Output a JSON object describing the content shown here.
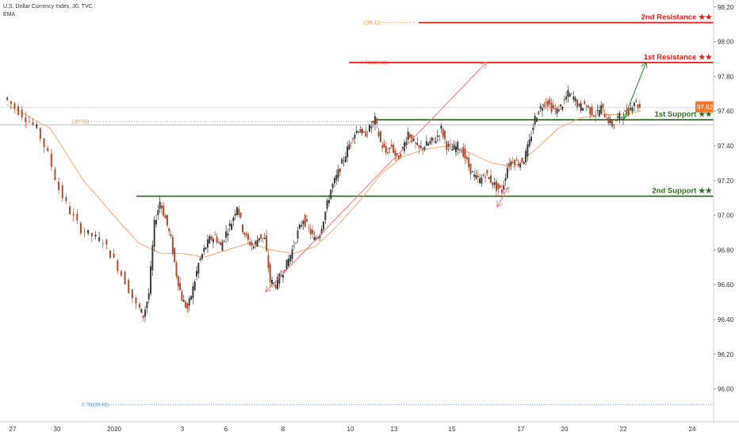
{
  "header": {
    "title": "U.S. Dollar Currency Index, 30, TVC",
    "indicator": "EMA"
  },
  "colors": {
    "resistance": "#e31b1b",
    "support": "#2f6e1e",
    "up_candle": "#3c3c3c",
    "down_candle": "#b24a2f",
    "ema": "#f5a673",
    "arrow_pink": "#f08080",
    "arrow_green": "#2f8a2f",
    "fib_red": "#e46b6b",
    "fib_orange": "#d08c3c",
    "fib_blue": "#5a8bc8",
    "badge_orange": "#f0782a"
  },
  "chart_data": {
    "type": "candlestick",
    "ylim": [
      95.82,
      98.24
    ],
    "y_ticks": [
      98.2,
      98.0,
      97.8,
      97.6,
      97.4,
      97.2,
      97.0,
      96.8,
      96.6,
      96.4,
      96.2,
      96.0
    ],
    "y_tick_labels": [
      "98.20",
      "98.00",
      "97.80",
      "97.60",
      "97.40",
      "97.20",
      "97.00",
      "96.80",
      "96.60",
      "96.40",
      "96.20",
      "96.00"
    ],
    "x_tick_labels": [
      "27",
      "30",
      "2020",
      "3",
      "6",
      "8",
      "10",
      "13",
      "15",
      "17",
      "20",
      "22",
      "24"
    ],
    "levels": [
      {
        "name": "2nd Resistance ★★",
        "value": 98.11,
        "price_label": "98.11",
        "role": "resistance"
      },
      {
        "name": "1st Resistance ★★",
        "value": 97.88,
        "price_label": "97.88",
        "role": "resistance"
      },
      {
        "name": "1st Support ★★",
        "value": 97.55,
        "price_label": "97.55",
        "role": "support"
      },
      {
        "name": "2nd Support ★★",
        "value": 97.11,
        "price_label": "97.11",
        "role": "support"
      }
    ],
    "fib_labels": [
      {
        "text": "1(98.11)",
        "value": 98.11,
        "color": "orange"
      },
      {
        "text": "0.786(97.88)",
        "value": 97.88,
        "color": "red"
      },
      {
        "text": "1(97.54)",
        "value": 97.54,
        "color": "orange"
      },
      {
        "text": "0.786(95.91)",
        "value": 95.91,
        "color": "blue"
      }
    ],
    "current_price_badge": "97.62",
    "price_path": [
      [
        0,
        97.68
      ],
      [
        2,
        97.62
      ],
      [
        4,
        97.56
      ],
      [
        6,
        97.5
      ],
      [
        8,
        97.35
      ],
      [
        10,
        97.15
      ],
      [
        12,
        97.02
      ],
      [
        14,
        96.92
      ],
      [
        16,
        96.88
      ],
      [
        18,
        96.85
      ],
      [
        20,
        96.74
      ],
      [
        22,
        96.62
      ],
      [
        24,
        96.48
      ],
      [
        25,
        96.42
      ],
      [
        26,
        96.55
      ],
      [
        27,
        96.95
      ],
      [
        28,
        97.08
      ],
      [
        29,
        96.98
      ],
      [
        30,
        96.86
      ],
      [
        31,
        96.66
      ],
      [
        32,
        96.52
      ],
      [
        33,
        96.46
      ],
      [
        34,
        96.58
      ],
      [
        35,
        96.72
      ],
      [
        36,
        96.8
      ],
      [
        37,
        96.86
      ],
      [
        38,
        96.88
      ],
      [
        39,
        96.82
      ],
      [
        40,
        96.9
      ],
      [
        41,
        96.96
      ],
      [
        42,
        97.06
      ],
      [
        43,
        96.92
      ],
      [
        44,
        96.85
      ],
      [
        45,
        96.82
      ],
      [
        46,
        96.88
      ],
      [
        47,
        96.86
      ],
      [
        48,
        96.62
      ],
      [
        49,
        96.6
      ],
      [
        50,
        96.66
      ],
      [
        51,
        96.72
      ],
      [
        52,
        96.8
      ],
      [
        53,
        96.9
      ],
      [
        54,
        96.98
      ],
      [
        55,
        96.92
      ],
      [
        56,
        96.86
      ],
      [
        57,
        96.9
      ],
      [
        58,
        97.02
      ],
      [
        59,
        97.15
      ],
      [
        60,
        97.22
      ],
      [
        61,
        97.3
      ],
      [
        62,
        97.38
      ],
      [
        63,
        97.46
      ],
      [
        64,
        97.5
      ],
      [
        65,
        97.46
      ],
      [
        66,
        97.5
      ],
      [
        67,
        97.55
      ],
      [
        68,
        97.42
      ],
      [
        69,
        97.36
      ],
      [
        70,
        97.4
      ],
      [
        71,
        97.32
      ],
      [
        72,
        97.38
      ],
      [
        73,
        97.48
      ],
      [
        74,
        97.42
      ],
      [
        75,
        97.38
      ],
      [
        76,
        97.4
      ],
      [
        77,
        97.42
      ],
      [
        78,
        97.44
      ],
      [
        79,
        97.5
      ],
      [
        80,
        97.4
      ],
      [
        81,
        97.38
      ],
      [
        82,
        97.4
      ],
      [
        83,
        97.36
      ],
      [
        84,
        97.28
      ],
      [
        85,
        97.22
      ],
      [
        86,
        97.2
      ],
      [
        87,
        97.24
      ],
      [
        88,
        97.2
      ],
      [
        89,
        97.16
      ],
      [
        90,
        97.14
      ],
      [
        91,
        97.28
      ],
      [
        92,
        97.32
      ],
      [
        93,
        97.3
      ],
      [
        94,
        97.32
      ],
      [
        95,
        97.42
      ],
      [
        96,
        97.56
      ],
      [
        97,
        97.62
      ],
      [
        98,
        97.66
      ],
      [
        99,
        97.62
      ],
      [
        100,
        97.6
      ],
      [
        101,
        97.64
      ],
      [
        102,
        97.7
      ],
      [
        103,
        97.68
      ],
      [
        104,
        97.62
      ],
      [
        105,
        97.64
      ],
      [
        106,
        97.6
      ],
      [
        107,
        97.58
      ],
      [
        108,
        97.62
      ],
      [
        109,
        97.56
      ],
      [
        110,
        97.52
      ],
      [
        111,
        97.56
      ],
      [
        112,
        97.58
      ],
      [
        113,
        97.6
      ],
      [
        114,
        97.66
      ],
      [
        115,
        97.62
      ]
    ],
    "ema_path": [
      [
        0,
        97.64
      ],
      [
        8,
        97.5
      ],
      [
        14,
        97.2
      ],
      [
        20,
        96.98
      ],
      [
        24,
        96.84
      ],
      [
        28,
        96.78
      ],
      [
        32,
        96.78
      ],
      [
        36,
        96.76
      ],
      [
        40,
        96.8
      ],
      [
        44,
        96.84
      ],
      [
        48,
        96.8
      ],
      [
        52,
        96.78
      ],
      [
        56,
        96.82
      ],
      [
        60,
        96.94
      ],
      [
        64,
        97.08
      ],
      [
        68,
        97.24
      ],
      [
        72,
        97.34
      ],
      [
        76,
        97.38
      ],
      [
        80,
        97.4
      ],
      [
        84,
        97.36
      ],
      [
        88,
        97.3
      ],
      [
        92,
        97.28
      ],
      [
        96,
        97.38
      ],
      [
        100,
        97.5
      ],
      [
        104,
        97.56
      ],
      [
        108,
        97.58
      ],
      [
        112,
        97.58
      ],
      [
        115,
        97.6
      ]
    ],
    "trend_arrows": [
      {
        "color": "pink",
        "from": [
          47,
          96.56
        ],
        "to": [
          87,
          97.88
        ]
      },
      {
        "color": "pink",
        "from": [
          89,
          97.05
        ],
        "to": [
          91,
          97.16
        ]
      },
      {
        "color": "green",
        "from": [
          112,
          97.56
        ],
        "to": [
          116,
          97.88
        ]
      }
    ]
  }
}
